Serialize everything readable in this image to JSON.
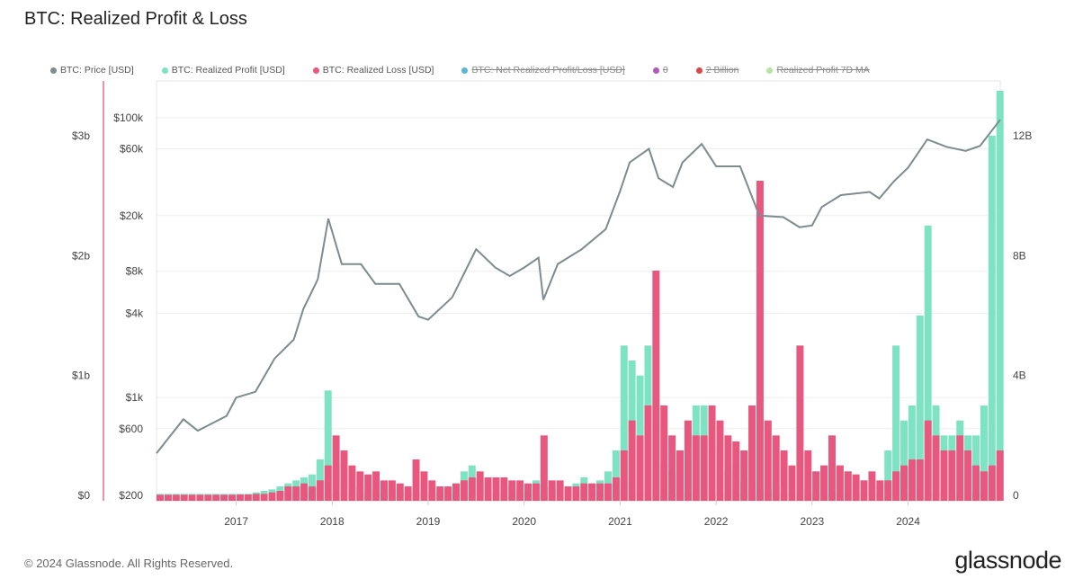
{
  "title": "BTC: Realized Profit & Loss",
  "legend": [
    {
      "label": "BTC: Price [USD]",
      "color": "#7d8c8f",
      "off": false
    },
    {
      "label": "BTC: Realized Profit [USD]",
      "color": "#7de3c3",
      "off": false
    },
    {
      "label": "BTC: Realized Loss [USD]",
      "color": "#e8577e",
      "off": false
    },
    {
      "label": "BTC: Net Realized Profit/Loss [USD]",
      "color": "#5ab4da",
      "off": true
    },
    {
      "label": "0",
      "color": "#b05ab8",
      "off": true
    },
    {
      "label": "2 Billion",
      "color": "#d94848",
      "off": true
    },
    {
      "label": "Realized Profit 7D MA",
      "color": "#b7e3a5",
      "off": true
    }
  ],
  "footer": "© 2024 Glassnode. All Rights Reserved.",
  "logo": "glassnode",
  "chart_data": {
    "type": "bar+line",
    "title": "BTC: Realized Profit & Loss",
    "x_ticks": [
      "2017",
      "2018",
      "2019",
      "2020",
      "2021",
      "2022",
      "2023",
      "2024"
    ],
    "x_range": [
      2016.17,
      2024.96
    ],
    "left_axis": {
      "ticks": [
        "$0",
        "$1b",
        "$2b",
        "$3b"
      ],
      "values": [
        0,
        1,
        2,
        3
      ],
      "unit": "billion USD"
    },
    "price_axis": {
      "scale": "log",
      "ticks": [
        "$200",
        "$600",
        "$1k",
        "$4k",
        "$8k",
        "$20k",
        "$60k",
        "$100k"
      ],
      "values": [
        200,
        600,
        1000,
        4000,
        8000,
        20000,
        60000,
        100000
      ]
    },
    "right_axis": {
      "ticks": [
        "0",
        "4B",
        "8B",
        "12B"
      ],
      "values": [
        0,
        4,
        8,
        12
      ],
      "unit": "billion USD"
    },
    "bar_start": 2016.17,
    "bar_step_months": 1,
    "price": [
      [
        2016.17,
        400
      ],
      [
        2016.45,
        700
      ],
      [
        2016.6,
        580
      ],
      [
        2016.9,
        740
      ],
      [
        2017.0,
        1000
      ],
      [
        2017.2,
        1100
      ],
      [
        2017.4,
        1900
      ],
      [
        2017.6,
        2600
      ],
      [
        2017.7,
        4300
      ],
      [
        2017.85,
        7000
      ],
      [
        2017.96,
        19000
      ],
      [
        2018.1,
        9000
      ],
      [
        2018.3,
        9000
      ],
      [
        2018.45,
        6500
      ],
      [
        2018.7,
        6500
      ],
      [
        2018.9,
        3800
      ],
      [
        2019.0,
        3600
      ],
      [
        2019.25,
        5200
      ],
      [
        2019.5,
        11500
      ],
      [
        2019.7,
        8500
      ],
      [
        2019.85,
        7400
      ],
      [
        2020.0,
        8500
      ],
      [
        2020.15,
        10000
      ],
      [
        2020.2,
        5000
      ],
      [
        2020.35,
        9000
      ],
      [
        2020.6,
        11500
      ],
      [
        2020.85,
        16000
      ],
      [
        2021.0,
        30000
      ],
      [
        2021.1,
        48000
      ],
      [
        2021.3,
        60000
      ],
      [
        2021.4,
        37000
      ],
      [
        2021.55,
        32000
      ],
      [
        2021.65,
        48000
      ],
      [
        2021.85,
        65000
      ],
      [
        2022.0,
        45000
      ],
      [
        2022.25,
        45000
      ],
      [
        2022.45,
        20000
      ],
      [
        2022.7,
        19500
      ],
      [
        2022.87,
        16500
      ],
      [
        2023.0,
        17000
      ],
      [
        2023.1,
        23000
      ],
      [
        2023.3,
        28000
      ],
      [
        2023.6,
        29500
      ],
      [
        2023.7,
        26500
      ],
      [
        2023.85,
        35000
      ],
      [
        2024.0,
        44000
      ],
      [
        2024.2,
        70000
      ],
      [
        2024.4,
        62000
      ],
      [
        2024.6,
        58000
      ],
      [
        2024.75,
        63000
      ],
      [
        2024.96,
        97000
      ]
    ],
    "realized_profit_b": [
      0.05,
      0.05,
      0.05,
      0.05,
      0.05,
      0.05,
      0.05,
      0.05,
      0.05,
      0.05,
      0.05,
      0.05,
      0.1,
      0.15,
      0.2,
      0.3,
      0.4,
      0.5,
      0.6,
      0.7,
      1.2,
      3.5,
      1.0,
      0.5,
      0.3,
      0.3,
      0.2,
      0.2,
      0.2,
      0.2,
      0.2,
      0.1,
      0.1,
      0.1,
      0.1,
      0.1,
      0.2,
      0.4,
      0.8,
      1.0,
      0.6,
      0.4,
      0.3,
      0.3,
      0.3,
      0.2,
      0.3,
      0.5,
      0.3,
      0.3,
      0.4,
      0.3,
      0.4,
      0.6,
      0.4,
      0.5,
      0.8,
      1.5,
      5.0,
      4.5,
      4.0,
      5.0,
      3.0,
      1.0,
      0.8,
      1.5,
      1.2,
      3.0,
      3.0,
      1.5,
      0.8,
      0.8,
      1.0,
      0.5,
      0.3,
      0.2,
      0.2,
      0.3,
      0.2,
      0.2,
      0.2,
      0.2,
      0.8,
      1.0,
      2.0,
      1.0,
      0.8,
      0.5,
      0.5,
      0.4,
      0.4,
      1.5,
      5.0,
      2.5,
      3.0,
      6.0,
      9.0,
      3.0,
      2.0,
      2.0,
      2.5,
      2.0,
      2.0,
      3.0,
      12.0,
      13.5
    ],
    "realized_loss_b": [
      0.02,
      0.02,
      0.02,
      0.02,
      0.02,
      0.02,
      0.02,
      0.02,
      0.02,
      0.02,
      0.03,
      0.03,
      0.05,
      0.05,
      0.1,
      0.15,
      0.3,
      0.3,
      0.4,
      0.3,
      0.5,
      1.0,
      2.0,
      1.5,
      1.0,
      0.8,
      0.7,
      0.8,
      0.5,
      0.5,
      0.4,
      0.3,
      1.2,
      0.8,
      0.5,
      0.3,
      0.3,
      0.4,
      0.5,
      0.6,
      0.8,
      0.6,
      0.6,
      0.6,
      0.5,
      0.5,
      0.4,
      0.4,
      2.0,
      0.5,
      0.5,
      0.3,
      0.3,
      0.4,
      0.4,
      0.4,
      0.4,
      0.6,
      1.5,
      2.5,
      2.0,
      3.0,
      7.5,
      3.0,
      2.0,
      1.5,
      2.5,
      2.0,
      2.0,
      3.0,
      2.5,
      2.0,
      1.8,
      1.5,
      3.0,
      10.5,
      2.5,
      2.0,
      1.5,
      1.0,
      5.0,
      1.5,
      0.8,
      1.0,
      2.0,
      1.0,
      0.8,
      0.7,
      0.5,
      0.8,
      0.5,
      0.5,
      0.8,
      1.0,
      1.2,
      1.2,
      2.5,
      2.0,
      1.5,
      1.5,
      2.0,
      1.5,
      1.0,
      0.8,
      1.0,
      1.5
    ]
  }
}
